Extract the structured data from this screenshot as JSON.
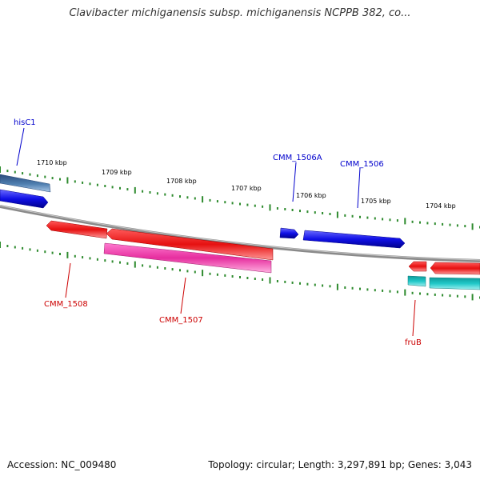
{
  "title": "Clavibacter michiganensis subsp. michiganensis NCPPB 382, co...",
  "footer": {
    "accession": "Accession: NC_009480",
    "summary": "Topology: circular; Length: 3,297,891 bp; Genes: 3,043"
  },
  "colors": {
    "backbone": "#8a8a8a",
    "ticks": "#2e8b2e",
    "forward_gene": "#1010e6",
    "forward_gene_alt": "#4f7fb0",
    "reverse_gene": "#e61010",
    "reverse_gene_alt": "#e62e9e",
    "reverse_gene_cyan": "#20c8c8",
    "forward_label": "#0000cc",
    "reverse_label": "#cc0000"
  },
  "scale_labels": [
    "1710 kbp",
    "1709 kbp",
    "1708 kbp",
    "1707 kbp",
    "1706 kbp",
    "1705 kbp",
    "1704 kbp"
  ],
  "genes": {
    "forward": [
      {
        "label": "hisC1"
      },
      {
        "label": ""
      },
      {
        "label": "CMM_1506A"
      },
      {
        "label": "CMM_1506"
      }
    ],
    "reverse": [
      {
        "label": "CMM_1508"
      },
      {
        "label": ""
      },
      {
        "label": "CMM_1507"
      },
      {
        "label": "fruB"
      },
      {
        "label": ""
      },
      {
        "label": ""
      },
      {
        "label": ""
      }
    ]
  }
}
